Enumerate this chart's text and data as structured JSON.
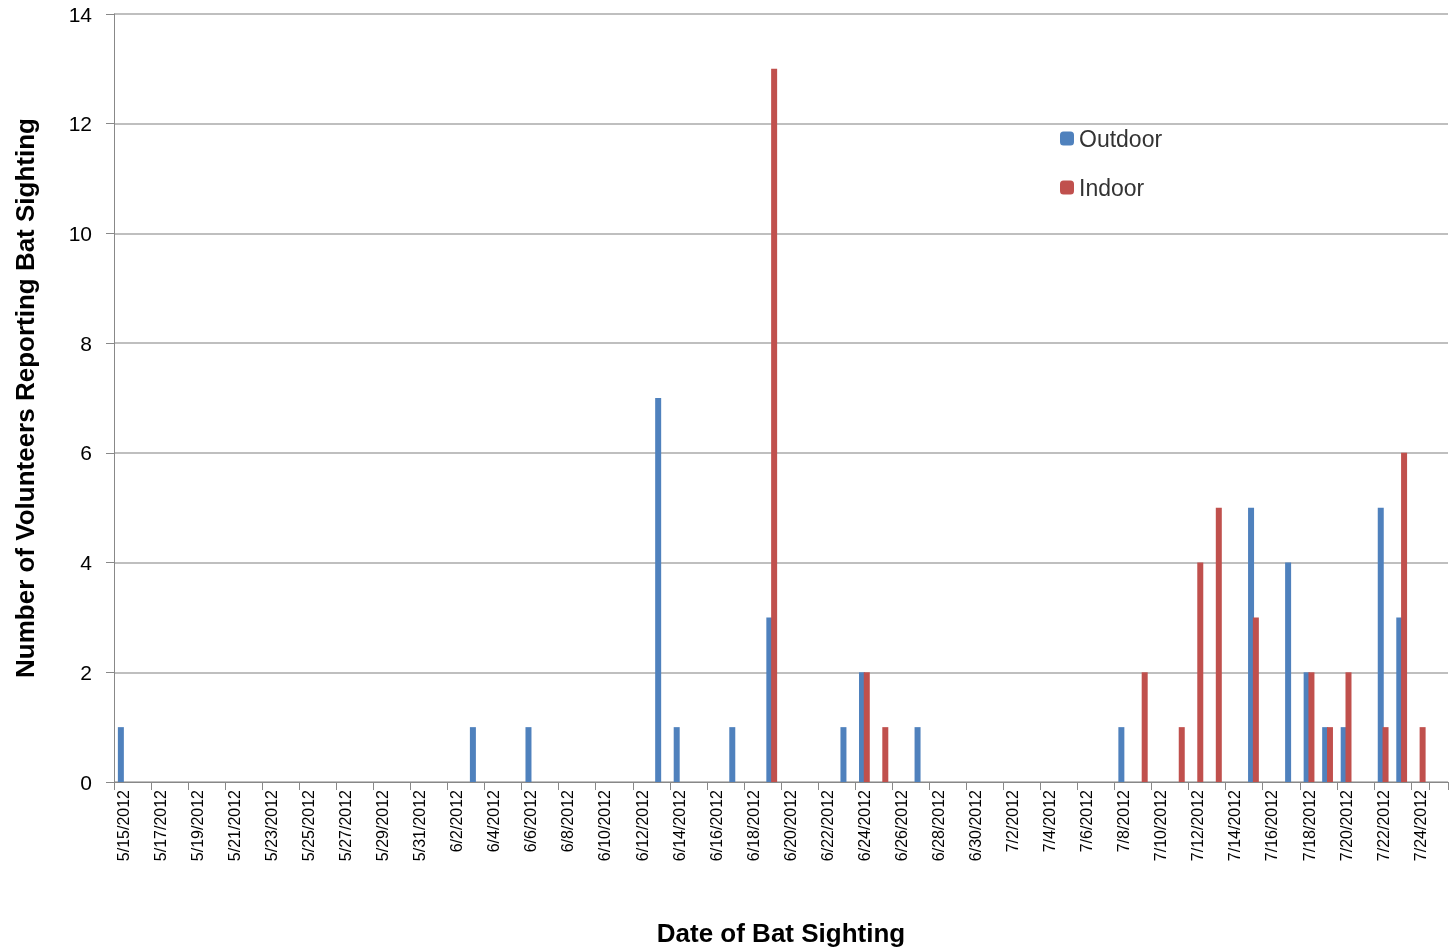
{
  "chart_data": {
    "type": "bar",
    "xlabel": "Date of Bat Sighting",
    "ylabel": "Number of Volunteers Reporting Bat Sighting",
    "categories": [
      "5/15/2012",
      null,
      "5/17/2012",
      null,
      "5/19/2012",
      null,
      "5/21/2012",
      null,
      "5/23/2012",
      null,
      "5/25/2012",
      null,
      "5/27/2012",
      null,
      "5/29/2012",
      null,
      "5/31/2012",
      null,
      "6/2/2012",
      null,
      "6/4/2012",
      null,
      "6/6/2012",
      null,
      "6/8/2012",
      null,
      "6/10/2012",
      null,
      "6/12/2012",
      null,
      "6/14/2012",
      null,
      "6/16/2012",
      null,
      "6/18/2012",
      null,
      "6/20/2012",
      null,
      "6/22/2012",
      null,
      "6/24/2012",
      null,
      "6/26/2012",
      null,
      "6/28/2012",
      null,
      "6/30/2012",
      null,
      "7/2/2012",
      null,
      "7/4/2012",
      null,
      "7/6/2012",
      null,
      "7/8/2012",
      null,
      "7/10/2012",
      null,
      "7/12/2012",
      null,
      "7/14/2012",
      null,
      "7/16/2012",
      null,
      "7/18/2012",
      null,
      "7/20/2012",
      null,
      "7/22/2012",
      null,
      "7/24/2012",
      null
    ],
    "series": [
      {
        "name": "Outdoor",
        "color": "#4f81bd",
        "values": [
          1,
          0,
          0,
          0,
          0,
          0,
          0,
          0,
          0,
          0,
          0,
          0,
          0,
          0,
          0,
          0,
          0,
          0,
          0,
          1,
          0,
          0,
          1,
          0,
          0,
          0,
          0,
          0,
          0,
          7,
          1,
          0,
          0,
          1,
          0,
          3,
          0,
          0,
          0,
          1,
          2,
          0,
          0,
          1,
          0,
          0,
          0,
          0,
          0,
          0,
          0,
          0,
          0,
          0,
          1,
          0,
          0,
          0,
          0,
          0,
          0,
          5,
          0,
          4,
          2,
          1,
          1,
          0,
          5,
          3,
          0,
          0
        ]
      },
      {
        "name": "Indoor",
        "color": "#c0504d",
        "values": [
          0,
          0,
          0,
          0,
          0,
          0,
          0,
          0,
          0,
          0,
          0,
          0,
          0,
          0,
          0,
          0,
          0,
          0,
          0,
          0,
          0,
          0,
          0,
          0,
          0,
          0,
          0,
          0,
          0,
          0,
          0,
          0,
          0,
          0,
          0,
          13,
          0,
          0,
          0,
          0,
          2,
          1,
          0,
          0,
          0,
          0,
          0,
          0,
          0,
          0,
          0,
          0,
          0,
          0,
          0,
          2,
          0,
          1,
          4,
          5,
          0,
          3,
          0,
          0,
          2,
          1,
          2,
          0,
          1,
          6,
          1,
          0
        ]
      }
    ],
    "ylim": [
      0,
      14
    ],
    "yticks": [
      0,
      2,
      4,
      6,
      8,
      10,
      12,
      14
    ],
    "grid": "y",
    "legend": "top right"
  }
}
